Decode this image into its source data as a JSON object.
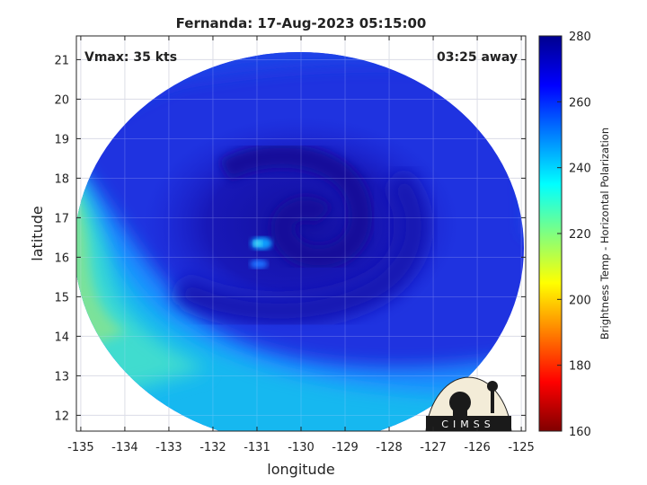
{
  "chart_data": {
    "type": "heatmap",
    "title": "Fernanda: 17-Aug-2023 05:15:00",
    "xlabel": "longitude",
    "ylabel": "latitude",
    "xlim": [
      -135.1,
      -124.9
    ],
    "ylim": [
      11.6,
      21.6
    ],
    "x_ticks": [
      -135,
      -134,
      -133,
      -132,
      -131,
      -130,
      -129,
      -128,
      -127,
      -126,
      -125
    ],
    "y_ticks": [
      12,
      13,
      14,
      15,
      16,
      17,
      18,
      19,
      20,
      21
    ],
    "grid": true,
    "annotations": {
      "left": "Vmax: 35 kts",
      "right": "03:25 away"
    },
    "storm_center": {
      "lon": -130.9,
      "lat": 16.35
    },
    "colorbar": {
      "label": "Brightness Temp - Horizontal Polarization",
      "range": [
        160,
        280
      ],
      "ticks": [
        160,
        180,
        200,
        220,
        240,
        260,
        280
      ],
      "colors": [
        "#800000",
        "#ff0000",
        "#ff8000",
        "#ffff00",
        "#80ff80",
        "#00ffff",
        "#0080ff",
        "#0000ff",
        "#00008f"
      ]
    },
    "logo": {
      "text": "CIMSS"
    }
  }
}
